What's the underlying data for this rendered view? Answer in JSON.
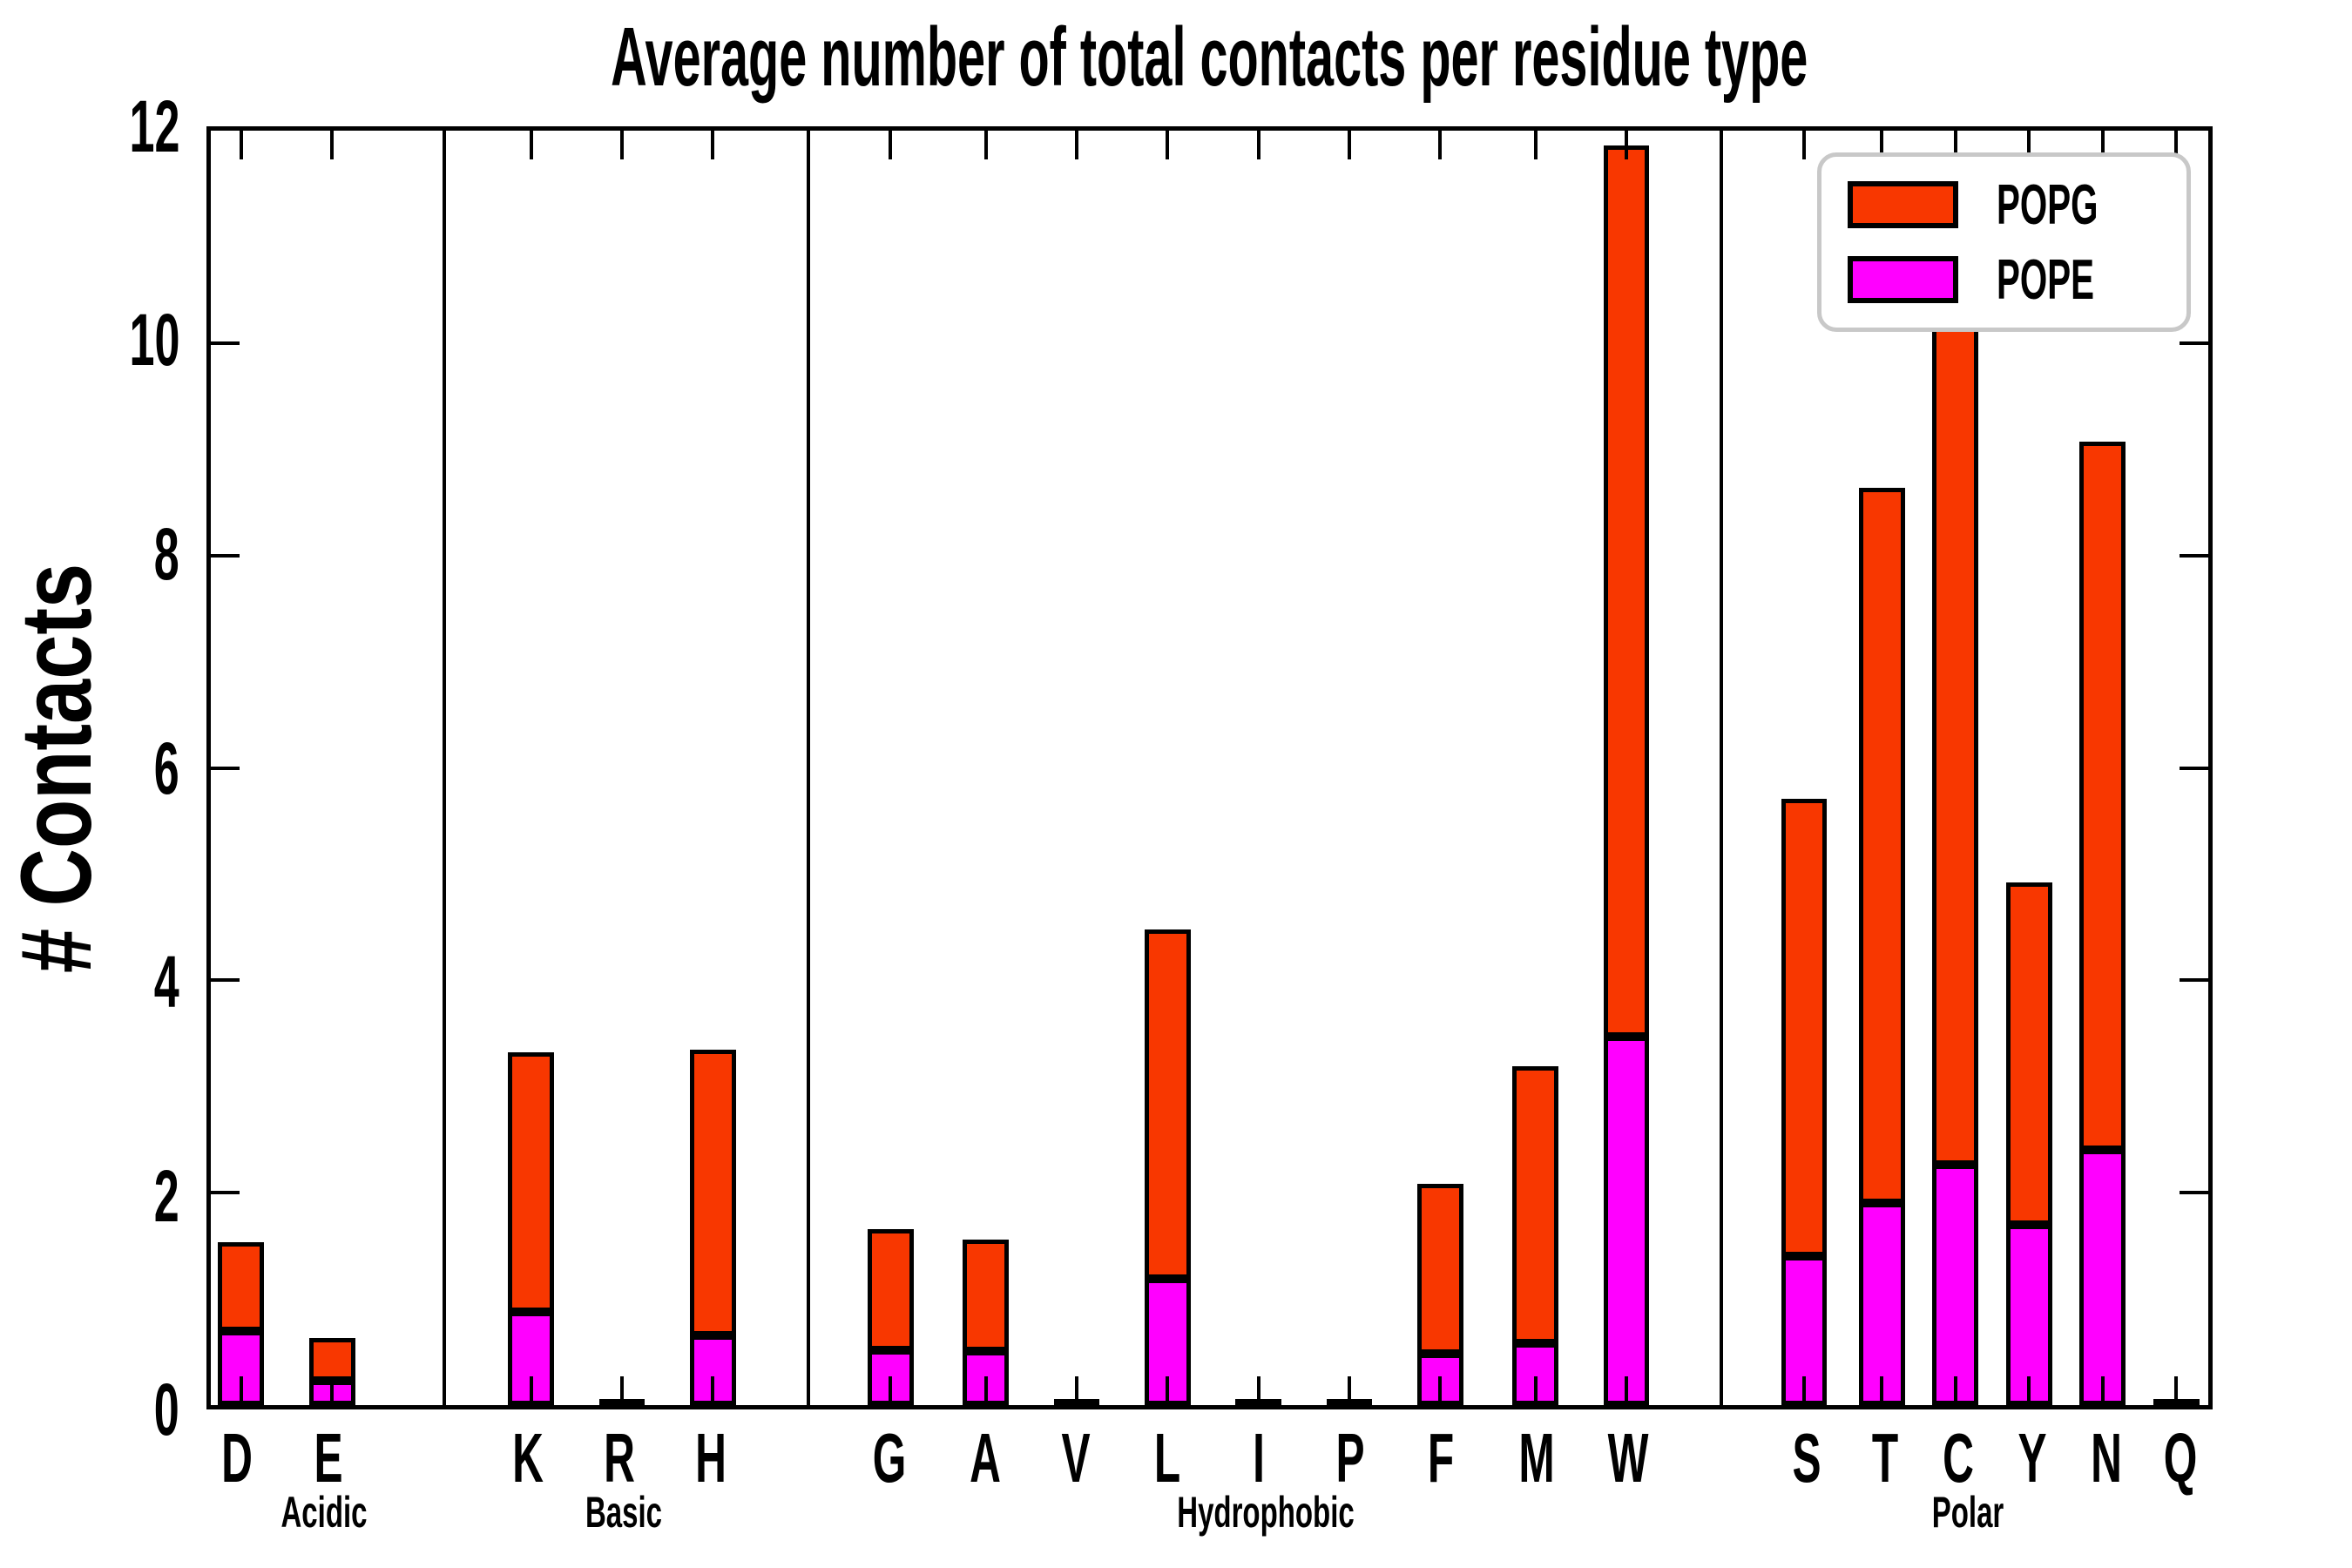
{
  "title": "Average number of total contacts per residue type",
  "ylabel": "# Contacts",
  "legend": {
    "items": [
      {
        "label": "POPG",
        "color": "#F83700"
      },
      {
        "label": "POPE",
        "color": "#FF00FF"
      }
    ]
  },
  "colors": {
    "popg": "#F83700",
    "pope": "#FF00FF",
    "axis": "#000000",
    "legend_border": "#C8C8C8",
    "background": "#FFFFFF"
  },
  "chart_data": {
    "type": "bar",
    "stacked": true,
    "title": "Average number of total contacts per residue type",
    "xlabel": "",
    "ylabel": "# Contacts",
    "ylim": [
      0,
      12
    ],
    "yticks": [
      0,
      2,
      4,
      6,
      8,
      10,
      12
    ],
    "grid": false,
    "legend_position": "upper right",
    "categories": [
      "D",
      "E",
      "K",
      "R",
      "H",
      "G",
      "A",
      "V",
      "L",
      "I",
      "P",
      "F",
      "M",
      "W",
      "S",
      "T",
      "C",
      "Y",
      "N",
      "Q"
    ],
    "groups": [
      {
        "label": "Acidic",
        "residues": [
          "D",
          "E"
        ]
      },
      {
        "label": "Basic",
        "residues": [
          "K",
          "R",
          "H"
        ]
      },
      {
        "label": "Hydrophobic",
        "residues": [
          "G",
          "A",
          "V",
          "L",
          "I",
          "P",
          "F",
          "M",
          "W"
        ]
      },
      {
        "label": "Polar",
        "residues": [
          "S",
          "T",
          "C",
          "Y",
          "N",
          "Q"
        ]
      }
    ],
    "series": [
      {
        "name": "POPE",
        "color": "#FF00FF",
        "values": [
          0.7,
          0.23,
          0.88,
          0,
          0.66,
          0.52,
          0.51,
          0,
          1.19,
          0,
          0,
          0.48,
          0.58,
          3.47,
          1.4,
          1.9,
          2.26,
          1.7,
          2.4,
          0
        ]
      },
      {
        "name": "POPG",
        "color": "#F83700",
        "values": [
          0.83,
          0.4,
          2.44,
          0,
          2.69,
          1.14,
          1.05,
          0,
          3.29,
          0,
          0,
          1.6,
          2.61,
          8.39,
          4.31,
          6.74,
          8.71,
          3.22,
          6.67,
          0
        ]
      }
    ],
    "totals": [
      1.53,
      0.63,
      3.32,
      0,
      3.35,
      1.66,
      1.56,
      0,
      4.48,
      0,
      0,
      2.08,
      3.19,
      11.86,
      5.71,
      8.64,
      10.97,
      4.92,
      9.07,
      0
    ]
  }
}
